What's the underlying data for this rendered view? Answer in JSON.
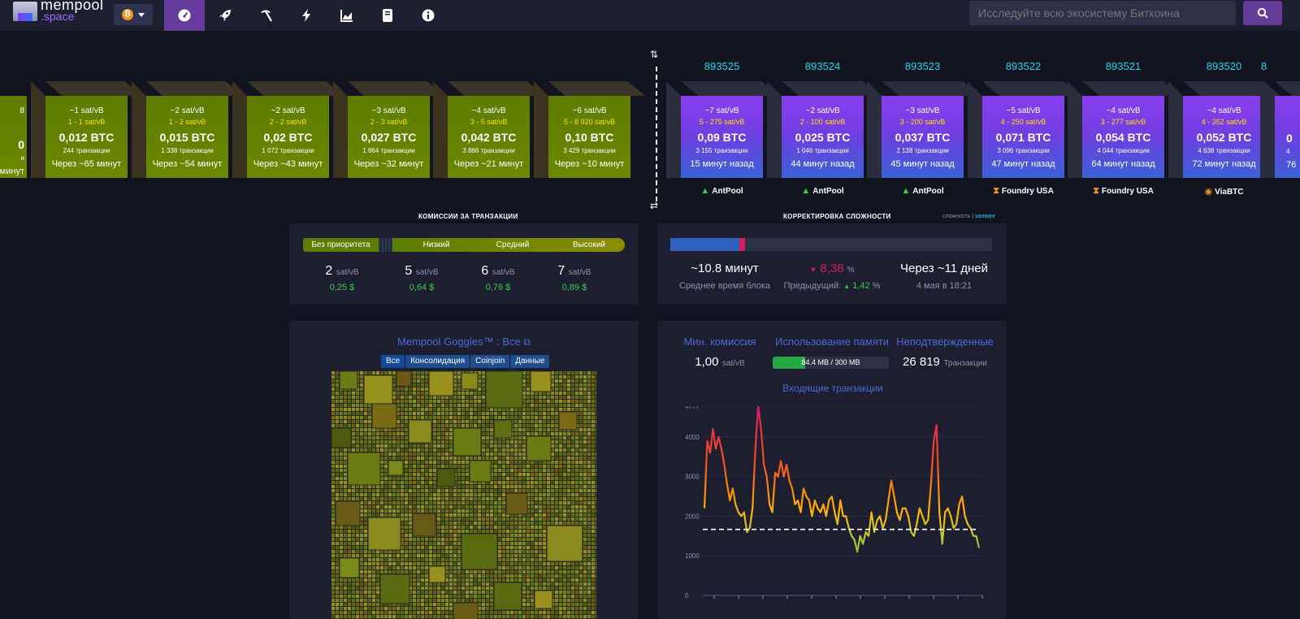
{
  "app": {
    "logo_top": "mempool",
    "logo_bottom": ".space",
    "coin_symbol": "₿"
  },
  "nav": {
    "items": [
      "dashboard-icon",
      "rocket-icon",
      "pickaxe-icon",
      "lightning-icon",
      "chart-icon",
      "book-icon",
      "info-icon"
    ],
    "active": 0
  },
  "search": {
    "placeholder": "Исследуйте всю экосистему Биткоина"
  },
  "mempool_blocks": [
    {
      "fee": "~1 sat/vB",
      "span": "1 - 1 sat/vB",
      "size": "0,012 BTC",
      "tx": "244 транзакции",
      "time": "Через ~65 минут"
    },
    {
      "fee": "~2 sat/vB",
      "span": "1 - 2 sat/vB",
      "size": "0,015 BTC",
      "tx": "1 338 транзакции",
      "time": "Через ~54 минут"
    },
    {
      "fee": "~2 sat/vB",
      "span": "2 - 2 sat/vB",
      "size": "0,02 BTC",
      "tx": "1 072 транзакции",
      "time": "Через ~43 минут"
    },
    {
      "fee": "~3 sat/vB",
      "span": "2 - 3 sat/vB",
      "size": "0,027 BTC",
      "tx": "1 864 транзакции",
      "time": "Через ~32 минут"
    },
    {
      "fee": "~4 sat/vB",
      "span": "3 - 5 sat/vB",
      "size": "0,042 BTC",
      "tx": "3 866 транзакции",
      "time": "Через ~21 минут"
    },
    {
      "fee": "~6 sat/vB",
      "span": "5 - 8 920 sat/vB",
      "size": "0,10 BTC",
      "tx": "3 429 транзакции",
      "time": "Через ~10 минут"
    }
  ],
  "partial_mempool_block": {
    "fee": "8",
    "tx": "и",
    "time": "минут"
  },
  "mined_blocks": [
    {
      "height": "893525",
      "fee": "~7 sat/vB",
      "span": "5 - 275 sat/vB",
      "size": "0,09 BTC",
      "tx": "3 155 транзакции",
      "time": "15 минут назад",
      "pool": "AntPool",
      "pool_icon": "antpool-icon"
    },
    {
      "height": "893524",
      "fee": "~2 sat/vB",
      "span": "2 - 100 sat/vB",
      "size": "0,025 BTC",
      "tx": "1 046 транзакции",
      "time": "44 минут назад",
      "pool": "AntPool",
      "pool_icon": "antpool-icon"
    },
    {
      "height": "893523",
      "fee": "~3 sat/vB",
      "span": "3 - 200 sat/vB",
      "size": "0,037 BTC",
      "tx": "2 138 транзакции",
      "time": "45 минут назад",
      "pool": "AntPool",
      "pool_icon": "antpool-icon"
    },
    {
      "height": "893522",
      "fee": "~5 sat/vB",
      "span": "4 - 250 sat/vB",
      "size": "0,071 BTC",
      "tx": "3 096 транзакции",
      "time": "47 минут назад",
      "pool": "Foundry USA",
      "pool_icon": "foundry-icon"
    },
    {
      "height": "893521",
      "fee": "~4 sat/vB",
      "span": "3 - 277 sat/vB",
      "size": "0,054 BTC",
      "tx": "4 044 транзакции",
      "time": "64 минут назад",
      "pool": "Foundry USA",
      "pool_icon": "foundry-icon"
    },
    {
      "height": "893520",
      "fee": "~4 sat/vB",
      "span": "4 - 352 sat/vB",
      "size": "0,052 BTC",
      "tx": "4 638 транзакции",
      "time": "72 минут назад",
      "pool": "ViaBTC",
      "pool_icon": "viabtc-icon"
    }
  ],
  "partial_mined_block": {
    "height": "8",
    "size": "0",
    "tx": "4",
    "time": "76"
  },
  "fees": {
    "title": "КОМИССИИ ЗА ТРАНЗАКЦИИ",
    "labels": [
      "Без приоритета",
      "Низкий",
      "Средний",
      "Высокий"
    ],
    "values": [
      "2",
      "5",
      "6",
      "7"
    ],
    "unit": "sat/vB",
    "usd": [
      "0,25 $",
      "0,64 $",
      "0,76 $",
      "0,89 $"
    ]
  },
  "difficulty": {
    "title": "КОРРЕКТИРОВКА СЛОЖНОСТИ",
    "toggle_a": "сложность",
    "toggle_sep": "|",
    "toggle_b": "халвинг",
    "progress": 0.22,
    "avg_block": "~10.8 минут",
    "avg_label": "Среднее время блока",
    "change": "8,38",
    "change_unit": "%",
    "previous_label": "Предыдущий:",
    "previous": "1,42",
    "previous_unit": "%",
    "eta": "Через ~11 дней",
    "eta_date": "4 мая в 18:21"
  },
  "goggles": {
    "title": "Mempool Goggles™ : Все",
    "tabs": [
      "Все",
      "Консолидация",
      "Coinjoin",
      "Данные"
    ],
    "active_tab": 0
  },
  "stats": {
    "min_fee_label": "Мин. комиссия",
    "min_fee": "1,00",
    "min_fee_unit": "sat/vB",
    "memory_label": "Использование памяти",
    "memory": "84.4 MB / 300 MB",
    "memory_fraction": 0.28,
    "unconfirmed_label": "Неподтвержденные",
    "unconfirmed": "26 819",
    "unconfirmed_unit": "Транзакции"
  },
  "incoming": {
    "title": "Входящие транзакции"
  },
  "chart_data": {
    "type": "line",
    "title": "Входящие транзакции",
    "ylim": [
      0,
      4777
    ],
    "yticks": [
      "4777",
      "4000",
      "3000",
      "2000",
      "1000",
      "0"
    ],
    "threshold": 1667,
    "values": [
      2200,
      3900,
      3600,
      4200,
      3700,
      4000,
      3700,
      3300,
      2800,
      2400,
      2700,
      2300,
      2100,
      2000,
      2100,
      1600,
      1700,
      2200,
      3700,
      4800,
      4200,
      3300,
      3000,
      2300,
      2100,
      3100,
      3000,
      3400,
      3000,
      3300,
      2900,
      2700,
      2300,
      2400,
      2100,
      2700,
      2500,
      2400,
      2000,
      2400,
      2200,
      2100,
      2300,
      2000,
      2400,
      2500,
      2100,
      1800,
      2400,
      2000,
      2000,
      1700,
      1500,
      1400,
      1100,
      1500,
      1300,
      1600,
      1500,
      2100,
      1600,
      1900,
      2000,
      1700,
      1900,
      2400,
      2900,
      2500,
      2100,
      1900,
      2200,
      2200,
      2000,
      1600,
      1500,
      1800,
      2200,
      2000,
      1800,
      1900,
      2800,
      3900,
      4300,
      2100,
      1300,
      2100,
      2200,
      2000,
      1700,
      1800,
      2300,
      2500,
      2000,
      1800,
      1700,
      1500,
      1500,
      1200
    ]
  }
}
